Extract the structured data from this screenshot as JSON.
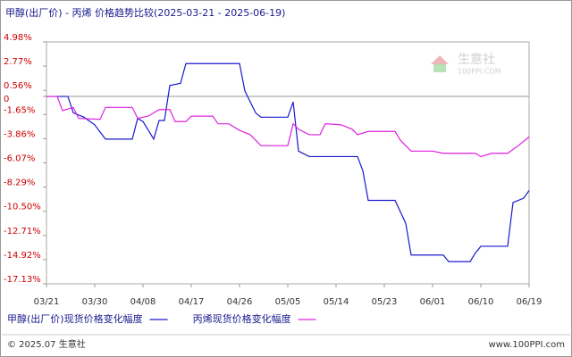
{
  "chart_data": {
    "type": "line",
    "title": "甲醇(出厂价) - 丙烯 价格趋势比较(2025-03-21 - 2025-06-19)",
    "watermark": {
      "name": "生意社",
      "site": "100PPI.COM"
    },
    "footer": {
      "left": "© 2025.07 生意社",
      "right": "www.100PPI.com"
    },
    "xlim": [
      "03/21",
      "06/19"
    ],
    "xticks": [
      "03/21",
      "03/30",
      "04/08",
      "04/17",
      "04/26",
      "05/05",
      "05/14",
      "05/23",
      "06/01",
      "06/10",
      "06/19"
    ],
    "ylim": [
      -17.13,
      4.98
    ],
    "yticks": [
      {
        "value": -17.13,
        "label": "-17.13%"
      },
      {
        "value": -14.92,
        "label": "-14.92%"
      },
      {
        "value": -12.71,
        "label": "-12.71%"
      },
      {
        "value": -10.5,
        "label": "-10.50%"
      },
      {
        "value": -8.29,
        "label": "-8.29%"
      },
      {
        "value": -6.07,
        "label": "-6.07%"
      },
      {
        "value": -3.86,
        "label": "-3.86%"
      },
      {
        "value": -1.65,
        "label": "-1.65%"
      },
      0,
      {
        "value": 0.56,
        "label": "0.56%"
      },
      {
        "value": 2.77,
        "label": "2.77%"
      },
      {
        "value": 4.98,
        "label": "4.98%"
      }
    ],
    "grid": false,
    "series": [
      {
        "name": "甲醇(出厂价)现货价格变化幅度",
        "color": "#1a1acc",
        "x": [
          "03/21",
          "03/25",
          "03/26",
          "03/28",
          "03/30",
          "04/01",
          "04/06",
          "04/07",
          "04/08",
          "04/10",
          "04/11",
          "04/12",
          "04/13",
          "04/15",
          "04/16",
          "04/26",
          "04/27",
          "04/29",
          "04/30",
          "05/05",
          "05/06",
          "05/07",
          "05/09",
          "05/18",
          "05/19",
          "05/20",
          "05/25",
          "05/27",
          "05/28",
          "06/03",
          "06/04",
          "06/08",
          "06/09",
          "06/10",
          "06/15",
          "06/16",
          "06/18",
          "06/19"
        ],
        "values": [
          0,
          0,
          -1.5,
          -1.9,
          -2.6,
          -3.9,
          -3.9,
          -2.0,
          -2.3,
          -3.9,
          -2.2,
          -2.2,
          1.0,
          1.2,
          3.0,
          3.0,
          0.5,
          -1.5,
          -1.9,
          -1.9,
          -0.5,
          -5.0,
          -5.5,
          -5.5,
          -6.8,
          -9.5,
          -9.5,
          -11.6,
          -14.5,
          -14.5,
          -15.1,
          -15.1,
          -14.3,
          -13.7,
          -13.7,
          -9.7,
          -9.3,
          -8.6
        ]
      },
      {
        "name": "丙烯现货价格变化幅度",
        "color": "#e020e0",
        "x": [
          "03/21",
          "03/23",
          "03/24",
          "03/26",
          "03/27",
          "03/31",
          "04/01",
          "04/06",
          "04/07",
          "04/09",
          "04/11",
          "04/13",
          "04/14",
          "04/16",
          "04/17",
          "04/21",
          "04/22",
          "04/24",
          "04/26",
          "04/28",
          "04/30",
          "05/05",
          "05/06",
          "05/07",
          "05/09",
          "05/11",
          "05/12",
          "05/15",
          "05/17",
          "05/18",
          "05/20",
          "05/25",
          "05/26",
          "05/28",
          "06/01",
          "06/03",
          "06/09",
          "06/10",
          "06/12",
          "06/15",
          "06/17",
          "06/19"
        ],
        "values": [
          0,
          0,
          -1.3,
          -1.0,
          -2.0,
          -2.1,
          -1.0,
          -1.0,
          -2.0,
          -1.8,
          -1.2,
          -1.2,
          -2.3,
          -2.3,
          -1.8,
          -1.8,
          -2.5,
          -2.5,
          -3.1,
          -3.5,
          -4.5,
          -4.5,
          -2.5,
          -3.0,
          -3.5,
          -3.5,
          -2.5,
          -2.6,
          -3.0,
          -3.5,
          -3.2,
          -3.2,
          -4.0,
          -5.0,
          -5.0,
          -5.2,
          -5.2,
          -5.5,
          -5.2,
          -5.2,
          -4.5,
          -3.7
        ]
      }
    ]
  }
}
